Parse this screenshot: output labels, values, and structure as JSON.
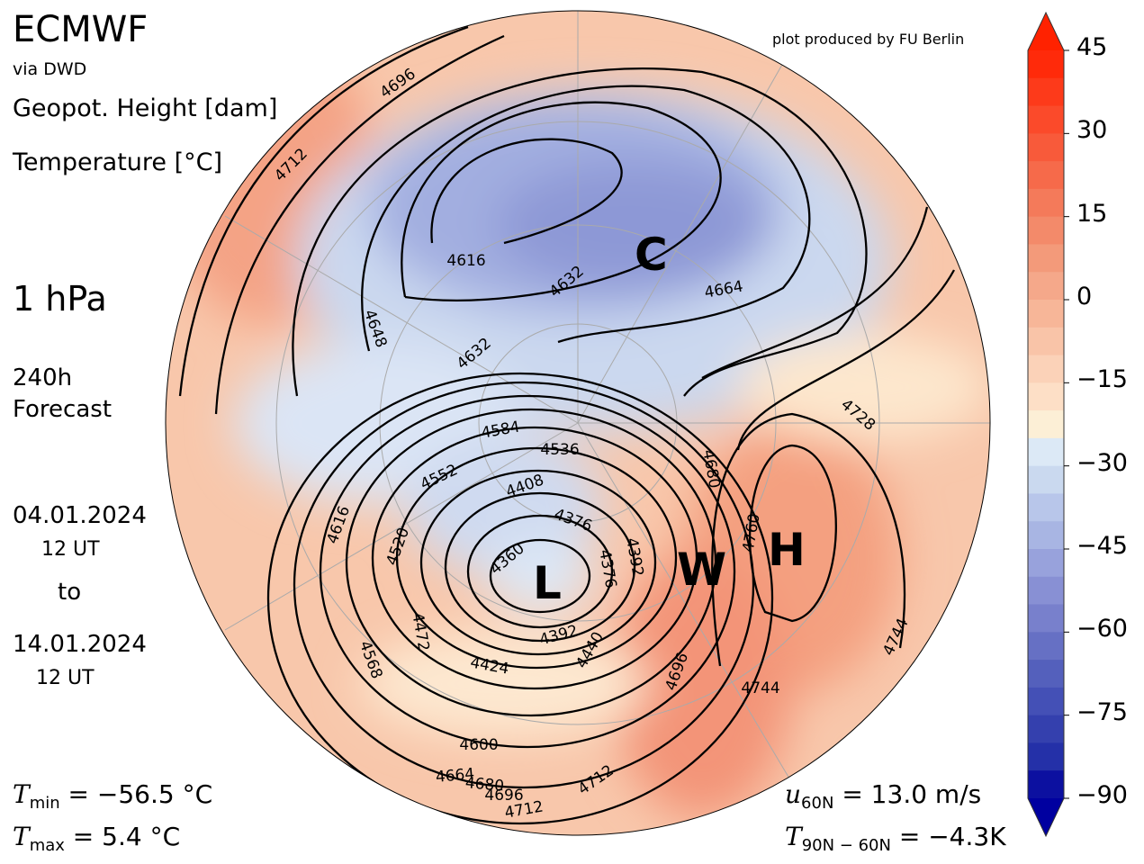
{
  "header": {
    "title": "ECMWF",
    "source": "via DWD",
    "field1": "Geopot. Height [dam]",
    "field2": "Temperature [°C]",
    "level": "1 hPa",
    "forecast_hours": "240h",
    "forecast_label": "Forecast",
    "credit": "plot produced by FU Berlin"
  },
  "period": {
    "start_date": "04.01.2024",
    "start_time": "12 UT",
    "to": "to",
    "end_date": "14.01.2024",
    "end_time": "12 UT"
  },
  "stats": {
    "tmin_sym": "T",
    "tmin_sub": "min",
    "tmin_val": " =  −56.5 °C",
    "tmax_sym": "T",
    "tmax_sub": "max",
    "tmax_val": " =  5.4 °C",
    "u_sym": "u",
    "u_sub": "60N",
    "u_val": " = 13.0 m/s",
    "t_sym": "T",
    "t_sub": "90N − 60N",
    "t_val": " = −4.3K"
  },
  "map": {
    "projection": "north polar stereographic",
    "labels": {
      "cold": "C",
      "low": "L",
      "warm": "W",
      "high": "H"
    },
    "contour_labels": [
      "4696",
      "4712",
      "4616",
      "4632",
      "4664",
      "4648",
      "4632",
      "4584",
      "4552",
      "4616",
      "4520",
      "4360",
      "4376",
      "4376",
      "4472",
      "4568",
      "4424",
      "4392",
      "4440",
      "4600",
      "4664",
      "4680",
      "4696",
      "4712",
      "4712",
      "4696",
      "4760",
      "4744",
      "4744",
      "4728",
      "4680",
      "4536",
      "4408",
      "4392"
    ]
  },
  "colorbar": {
    "ticks": [
      "45",
      "30",
      "15",
      "0",
      "−15",
      "−30",
      "−45",
      "−60",
      "−75",
      "−90"
    ],
    "range": [
      -90,
      45
    ],
    "step": 5,
    "colors": [
      "#ff2a0a",
      "#fd3a1a",
      "#fb4a2a",
      "#f85a3a",
      "#f66a4a",
      "#f47a5a",
      "#f38a6a",
      "#f39a7a",
      "#f5a88a",
      "#f7b698",
      "#f9c4a8",
      "#fbd2b8",
      "#fddfc6",
      "#fcefd6",
      "#dce9f6",
      "#cad9ef",
      "#b8c6ea",
      "#a8b5e3",
      "#98a2dc",
      "#8890d4",
      "#7880cc",
      "#6670c4",
      "#5460bc",
      "#4450b6",
      "#3440ae",
      "#2430a8",
      "#0c10a0"
    ],
    "extend_max": "#ff2200",
    "extend_min": "#0000a0"
  }
}
